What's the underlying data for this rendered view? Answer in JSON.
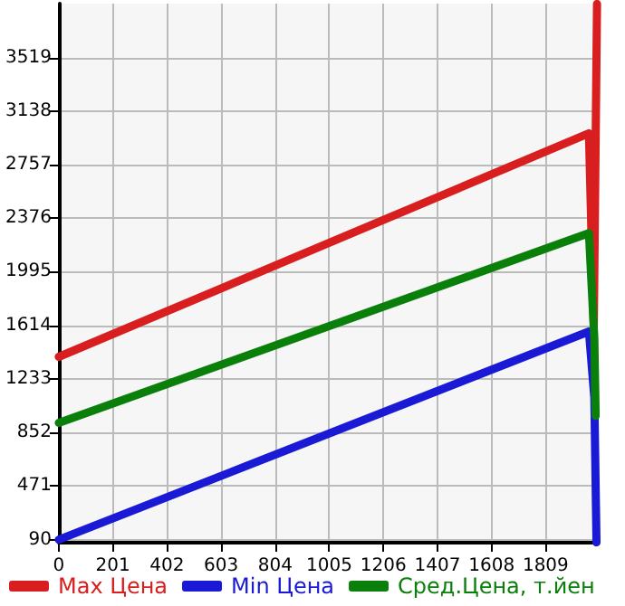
{
  "chart_data": {
    "type": "line",
    "series": [
      {
        "name": "Max Цена",
        "color": "#d81e1e",
        "x": [
          0,
          1970,
          1988,
          2000
        ],
        "values": [
          1390,
          2980,
          1600,
          3900
        ]
      },
      {
        "name": "Min Цена",
        "color": "#1a1ad6",
        "x": [
          0,
          1970,
          1990,
          1998
        ],
        "values": [
          90,
          1570,
          1100,
          70
        ]
      },
      {
        "name": "Сред.Цена, т.йен",
        "color": "#0a800a",
        "x": [
          0,
          1970,
          1990,
          1995
        ],
        "values": [
          920,
          2270,
          1520,
          970
        ]
      }
    ],
    "xlim": [
      0,
      2003
    ],
    "ylim": [
      68,
      3902
    ],
    "xticks": [
      0,
      201,
      402,
      603,
      804,
      1005,
      1206,
      1407,
      1608,
      1809
    ],
    "yticks": [
      90,
      471,
      852,
      1233,
      1614,
      1995,
      2376,
      2757,
      3138,
      3519
    ],
    "grid": true,
    "legend": "bottom",
    "marker": "none",
    "line_style": "solid"
  }
}
